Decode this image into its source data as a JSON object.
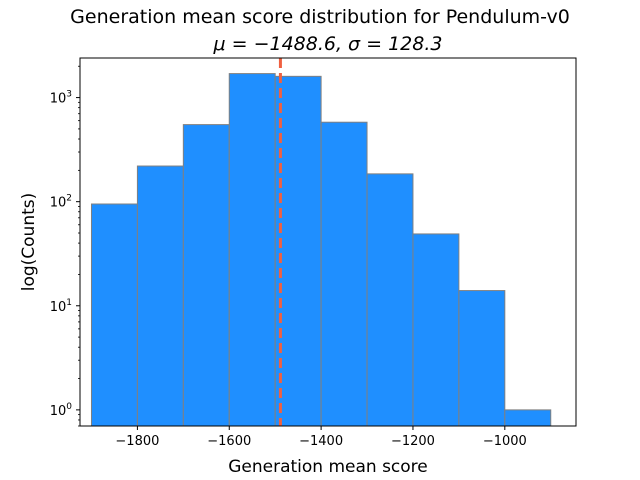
{
  "chart_data": {
    "type": "bar",
    "title": "Generation mean score distribution for Pendulum-v0",
    "subtitle": "μ = −1488.6, σ = 128.3",
    "xlabel": "Generation mean score",
    "ylabel": "log(Counts)",
    "y_scale": "log",
    "xlim": [
      -1925,
      -845
    ],
    "ylim": [
      0.7,
      2400
    ],
    "x_ticks": [
      -1800,
      -1600,
      -1400,
      -1200,
      -1000
    ],
    "x_tick_labels": [
      "−1800",
      "−1600",
      "−1400",
      "−1200",
      "−1000"
    ],
    "y_ticks": [
      1,
      10,
      100,
      1000
    ],
    "y_tick_labels": [
      {
        "base": "10",
        "exp": "0"
      },
      {
        "base": "10",
        "exp": "1"
      },
      {
        "base": "10",
        "exp": "2"
      },
      {
        "base": "10",
        "exp": "3"
      }
    ],
    "bins": [
      -1900,
      -1800,
      -1700,
      -1600,
      -1500,
      -1400,
      -1300,
      -1200,
      -1100,
      -1000,
      -900
    ],
    "counts": [
      95,
      220,
      550,
      1700,
      1600,
      580,
      185,
      49,
      14,
      1
    ],
    "mean_line": -1488.6,
    "grid": false,
    "legend": "none",
    "colors": {
      "bar_fill": "#1f8fff",
      "bar_edge": "#808080",
      "mean_line": "#f06040",
      "axes": "#000000"
    }
  }
}
